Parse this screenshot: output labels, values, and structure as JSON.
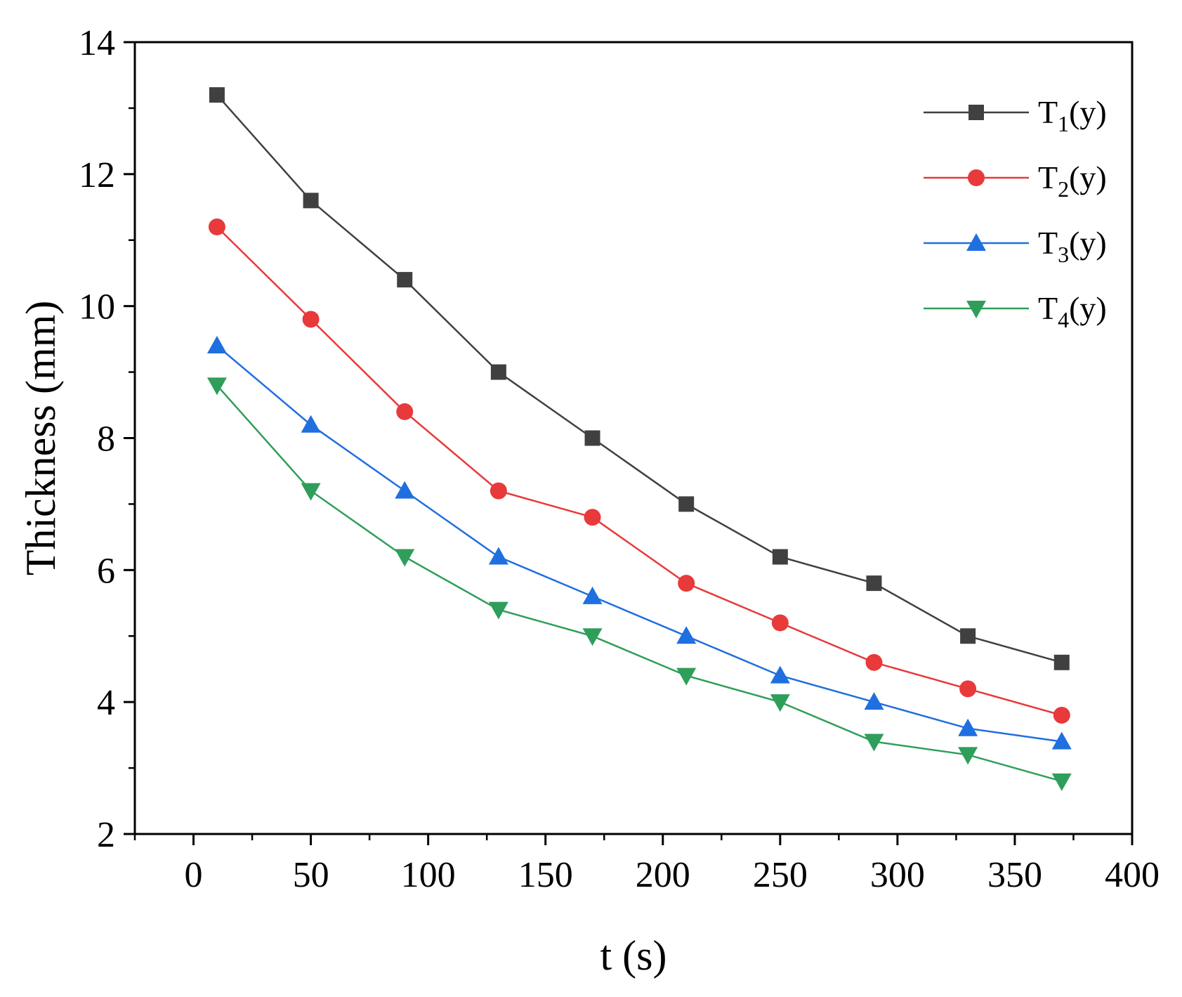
{
  "chart_data": {
    "type": "line",
    "title": "",
    "xlabel": "t (s)",
    "ylabel": "Thickness (mm)",
    "xlim": [
      -25,
      400
    ],
    "ylim": [
      2,
      14
    ],
    "xticks": [
      0,
      50,
      100,
      150,
      200,
      250,
      300,
      350,
      400
    ],
    "yticks": [
      2,
      4,
      6,
      8,
      10,
      12,
      14
    ],
    "grid": false,
    "legend_position": "top-right",
    "x": [
      10,
      50,
      90,
      130,
      170,
      210,
      250,
      290,
      330,
      370
    ],
    "series": [
      {
        "name": "T1(y)",
        "label_main": "T",
        "label_sub": "1",
        "label_suffix": "(y)",
        "color": "#404040",
        "marker": "square",
        "values": [
          13.2,
          11.6,
          10.4,
          9.0,
          8.0,
          7.0,
          6.2,
          5.8,
          5.0,
          4.6
        ]
      },
      {
        "name": "T2(y)",
        "label_main": "T",
        "label_sub": "2",
        "label_suffix": "(y)",
        "color": "#e8393b",
        "marker": "circle",
        "values": [
          11.2,
          9.8,
          8.4,
          7.2,
          6.8,
          5.8,
          5.2,
          4.6,
          4.2,
          3.8
        ]
      },
      {
        "name": "T3(y)",
        "label_main": "T",
        "label_sub": "3",
        "label_suffix": "(y)",
        "color": "#1f6fe0",
        "marker": "triangle-up",
        "values": [
          9.4,
          8.2,
          7.2,
          6.2,
          5.6,
          5.0,
          4.4,
          4.0,
          3.6,
          3.4
        ]
      },
      {
        "name": "T4(y)",
        "label_main": "T",
        "label_sub": "4",
        "label_suffix": "(y)",
        "color": "#2f9e5a",
        "marker": "triangle-down",
        "values": [
          8.8,
          7.2,
          6.2,
          5.4,
          5.0,
          4.4,
          4.0,
          3.4,
          3.2,
          2.8
        ]
      }
    ]
  }
}
